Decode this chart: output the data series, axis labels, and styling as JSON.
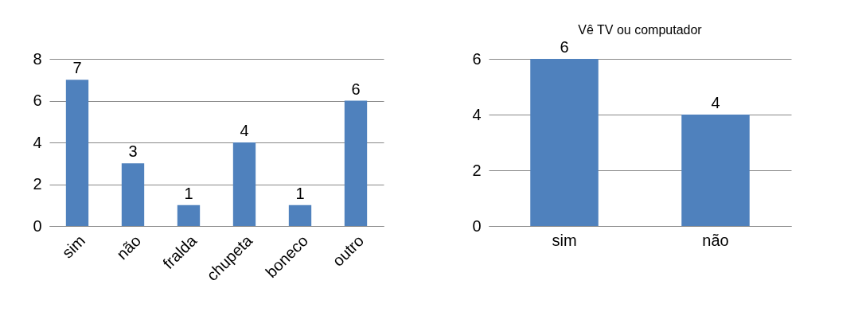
{
  "chart_data": [
    {
      "type": "bar",
      "categories": [
        "sim",
        "não",
        "fralda",
        "chupeta",
        "boneco",
        "outro"
      ],
      "values": [
        7,
        3,
        1,
        4,
        1,
        6
      ],
      "color": "#4f81bd",
      "ylim": [
        0,
        8
      ],
      "yticks": [
        0,
        2,
        4,
        6,
        8
      ],
      "grid": "y",
      "data_labels": true
    },
    {
      "type": "bar",
      "title": "Vê TV ou computador",
      "categories": [
        "sim",
        "não"
      ],
      "values": [
        6,
        4
      ],
      "color": "#4f81bd",
      "ylim": [
        0,
        6
      ],
      "yticks": [
        0,
        2,
        4,
        6
      ],
      "grid": "y",
      "data_labels": true
    }
  ]
}
